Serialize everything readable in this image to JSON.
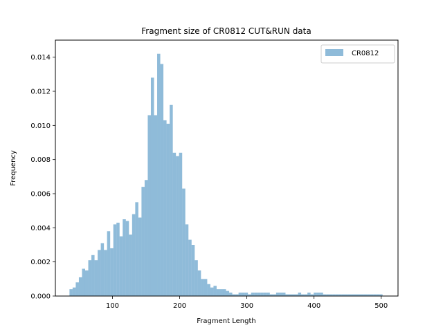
{
  "chart_data": {
    "type": "bar",
    "title": "Fragment size of CR0812 CUT&RUN data",
    "xlabel": "Fragment Length",
    "ylabel": "Frequency",
    "xlim": [
      15,
      525
    ],
    "ylim": [
      0,
      0.015
    ],
    "xticks": [
      100,
      200,
      300,
      400,
      500
    ],
    "xtick_labels": [
      "100",
      "200",
      "300",
      "400",
      "500"
    ],
    "yticks": [
      0,
      0.002,
      0.004,
      0.006,
      0.008,
      0.01,
      0.012,
      0.014
    ],
    "ytick_labels": [
      "0.000",
      "0.002",
      "0.004",
      "0.006",
      "0.008",
      "0.010",
      "0.012",
      "0.014"
    ],
    "legend_position": "top-right",
    "grid": false,
    "bin_width": 4.66,
    "series": [
      {
        "name": "CR0812",
        "color": "#1f77b4",
        "alpha": 0.5,
        "bin_starts": [
          36,
          40.66,
          45.32,
          49.98,
          54.64,
          59.3,
          63.96,
          68.62,
          73.28,
          77.94,
          82.6,
          87.26,
          91.92,
          96.58,
          101.24,
          105.9,
          110.56,
          115.22,
          119.88,
          124.54,
          129.2,
          133.86,
          138.52,
          143.18,
          147.84,
          152.5,
          157.16,
          161.82,
          166.48,
          171.14,
          175.8,
          180.46,
          185.12,
          189.78,
          194.44,
          199.1,
          203.76,
          208.42,
          213.08,
          217.74,
          222.4,
          227.06,
          231.72,
          236.38,
          241.04,
          245.7,
          250.36,
          255.02,
          259.68,
          264.34,
          269.0,
          273.66,
          278.32,
          282.98,
          287.64,
          292.3,
          296.96,
          301.62,
          306.28,
          310.94,
          315.6,
          320.26,
          324.92,
          329.58,
          334.24,
          338.9,
          343.56,
          348.22,
          352.88,
          357.54,
          362.2,
          366.86,
          371.52,
          376.18,
          380.84,
          385.5,
          390.16,
          394.82,
          399.48,
          404.14,
          408.8,
          413.46,
          418.12,
          422.78,
          427.44,
          432.1,
          436.76,
          441.42,
          446.08,
          450.74,
          455.4,
          460.06,
          464.72,
          469.38,
          474.04,
          478.7,
          483.36,
          488.02,
          492.68,
          497.34
        ],
        "values": [
          0.0004,
          0.0005,
          0.0008,
          0.0011,
          0.0016,
          0.0015,
          0.0021,
          0.0024,
          0.0021,
          0.0027,
          0.0031,
          0.0027,
          0.0038,
          0.0028,
          0.0042,
          0.0043,
          0.0035,
          0.0045,
          0.0044,
          0.0036,
          0.0048,
          0.0055,
          0.0046,
          0.0064,
          0.0068,
          0.0106,
          0.0128,
          0.0106,
          0.0142,
          0.0136,
          0.0103,
          0.0101,
          0.0112,
          0.0084,
          0.0082,
          0.0084,
          0.0063,
          0.0042,
          0.0033,
          0.003,
          0.0021,
          0.0015,
          0.001,
          0.001,
          0.0007,
          0.0005,
          0.0006,
          0.0004,
          0.0004,
          0.0004,
          0.0003,
          0.0002,
          0.0001,
          0.0001,
          0.0002,
          0.0002,
          0.0002,
          0.0001,
          0.0002,
          0.0002,
          0.0002,
          0.0002,
          0.0002,
          0.0002,
          0.0001,
          0.0001,
          0.0002,
          0.0002,
          0.0002,
          0.0001,
          0.0001,
          0.0001,
          0.0001,
          0.0002,
          0.0001,
          0.0001,
          0.0002,
          0.0001,
          0.0002,
          0.0002,
          0.0002,
          0.0001,
          0.0001,
          0.0001,
          0.0001,
          0.0001,
          0.0001,
          0.0001,
          0.0001,
          0.0001,
          0.0001,
          0.0001,
          0.0001,
          0.0001,
          0.0001,
          0.0001,
          0.0001,
          0.0001,
          0.0001,
          0.0001
        ]
      }
    ]
  }
}
